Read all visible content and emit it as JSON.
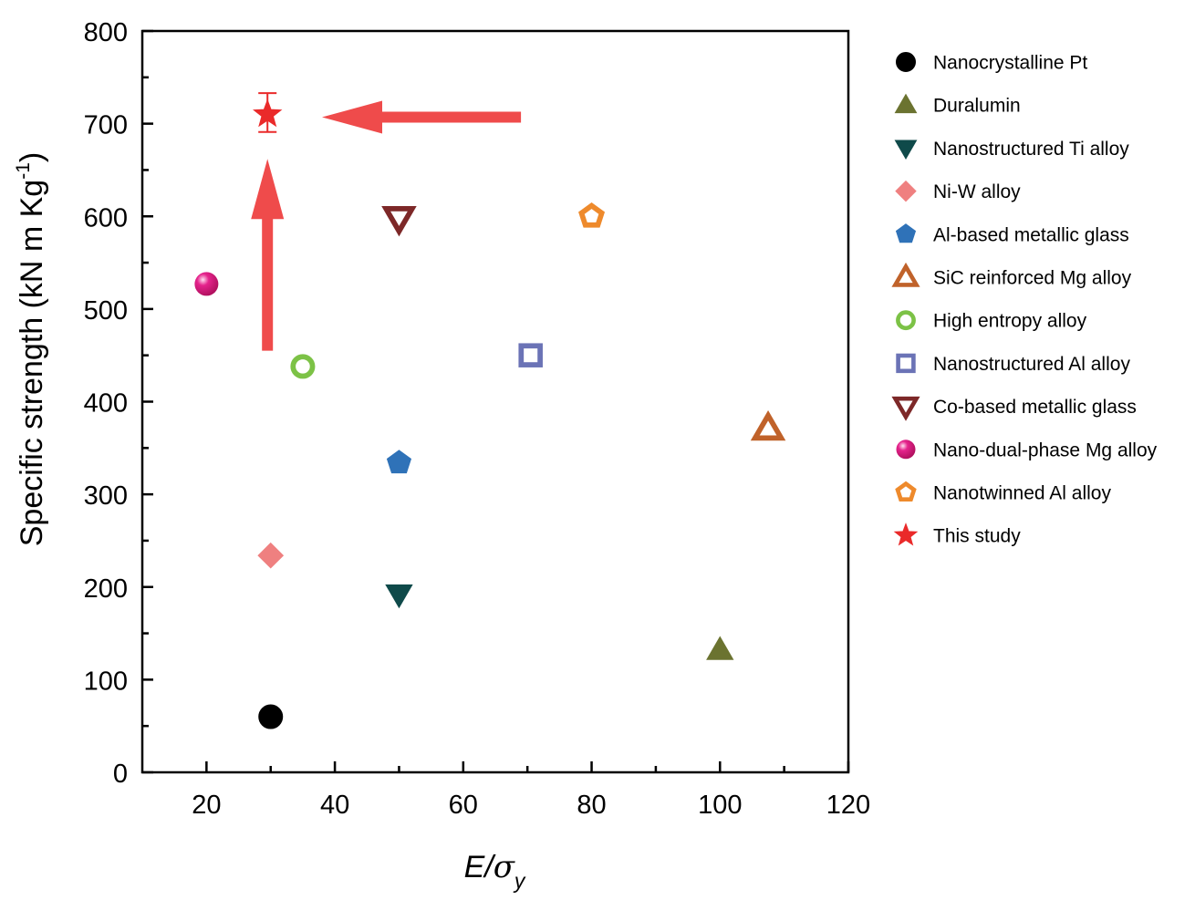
{
  "chart_data": {
    "type": "scatter",
    "xlabel": {
      "main": "E/",
      "sym": "σ",
      "sub": "y"
    },
    "ylabel": {
      "main": "Specific strength (kN m Kg",
      "sup": "-1",
      "close": ")"
    },
    "xlim": [
      10,
      120
    ],
    "ylim": [
      0,
      800
    ],
    "xticks": [
      20,
      40,
      60,
      80,
      100,
      120
    ],
    "yticks": [
      0,
      100,
      200,
      300,
      400,
      500,
      600,
      700,
      800
    ],
    "grid": false,
    "legend_position": "right",
    "series": [
      {
        "name": "Nanocrystalline Pt",
        "marker": "circle",
        "filled": true,
        "color": "#000000",
        "x": 30,
        "y": 60
      },
      {
        "name": "Duralumin",
        "marker": "triangle-up",
        "filled": true,
        "color": "#6b7330",
        "x": 100,
        "y": 132
      },
      {
        "name": "Nanostructured Ti alloy",
        "marker": "triangle-down",
        "filled": true,
        "color": "#0f4a4a",
        "x": 50,
        "y": 192
      },
      {
        "name": "Ni-W alloy",
        "marker": "diamond",
        "filled": true,
        "color": "#ef8080",
        "x": 30,
        "y": 234
      },
      {
        "name": "Al-based metallic glass",
        "marker": "pentagon",
        "filled": true,
        "color": "#2f72b8",
        "x": 50,
        "y": 334
      },
      {
        "name": "SiC reinforced Mg alloy",
        "marker": "triangle-up",
        "filled": false,
        "color": "#c0622a",
        "x": 107.5,
        "y": 371
      },
      {
        "name": "High entropy alloy",
        "marker": "circle",
        "filled": false,
        "color": "#7cc246",
        "x": 35,
        "y": 438
      },
      {
        "name": "Nanostructured Al alloy",
        "marker": "square",
        "filled": false,
        "color": "#6b73b6",
        "x": 70.5,
        "y": 450
      },
      {
        "name": "Co-based metallic glass",
        "marker": "triangle-down",
        "filled": false,
        "color": "#7d2828",
        "x": 50,
        "y": 598
      },
      {
        "name": "Nano-dual-phase Mg alloy",
        "marker": "sphere",
        "filled": true,
        "color": "#e5238c",
        "x": 20,
        "y": 527
      },
      {
        "name": "Nanotwinned Al alloy",
        "marker": "pentagon",
        "filled": false,
        "color": "#ee8a2c",
        "x": 80,
        "y": 600
      },
      {
        "name": "This study",
        "marker": "star",
        "filled": true,
        "color": "#ea2a2a",
        "x": 29.5,
        "y": 710,
        "error": [
          691,
          733
        ]
      }
    ],
    "annotations": [
      {
        "type": "arrow",
        "color": "#ef4b4b",
        "from": [
          69,
          707
        ],
        "to": [
          38,
          707
        ]
      },
      {
        "type": "arrow",
        "color": "#ef4b4b",
        "from": [
          29.5,
          455
        ],
        "to": [
          29.5,
          662
        ]
      }
    ]
  }
}
